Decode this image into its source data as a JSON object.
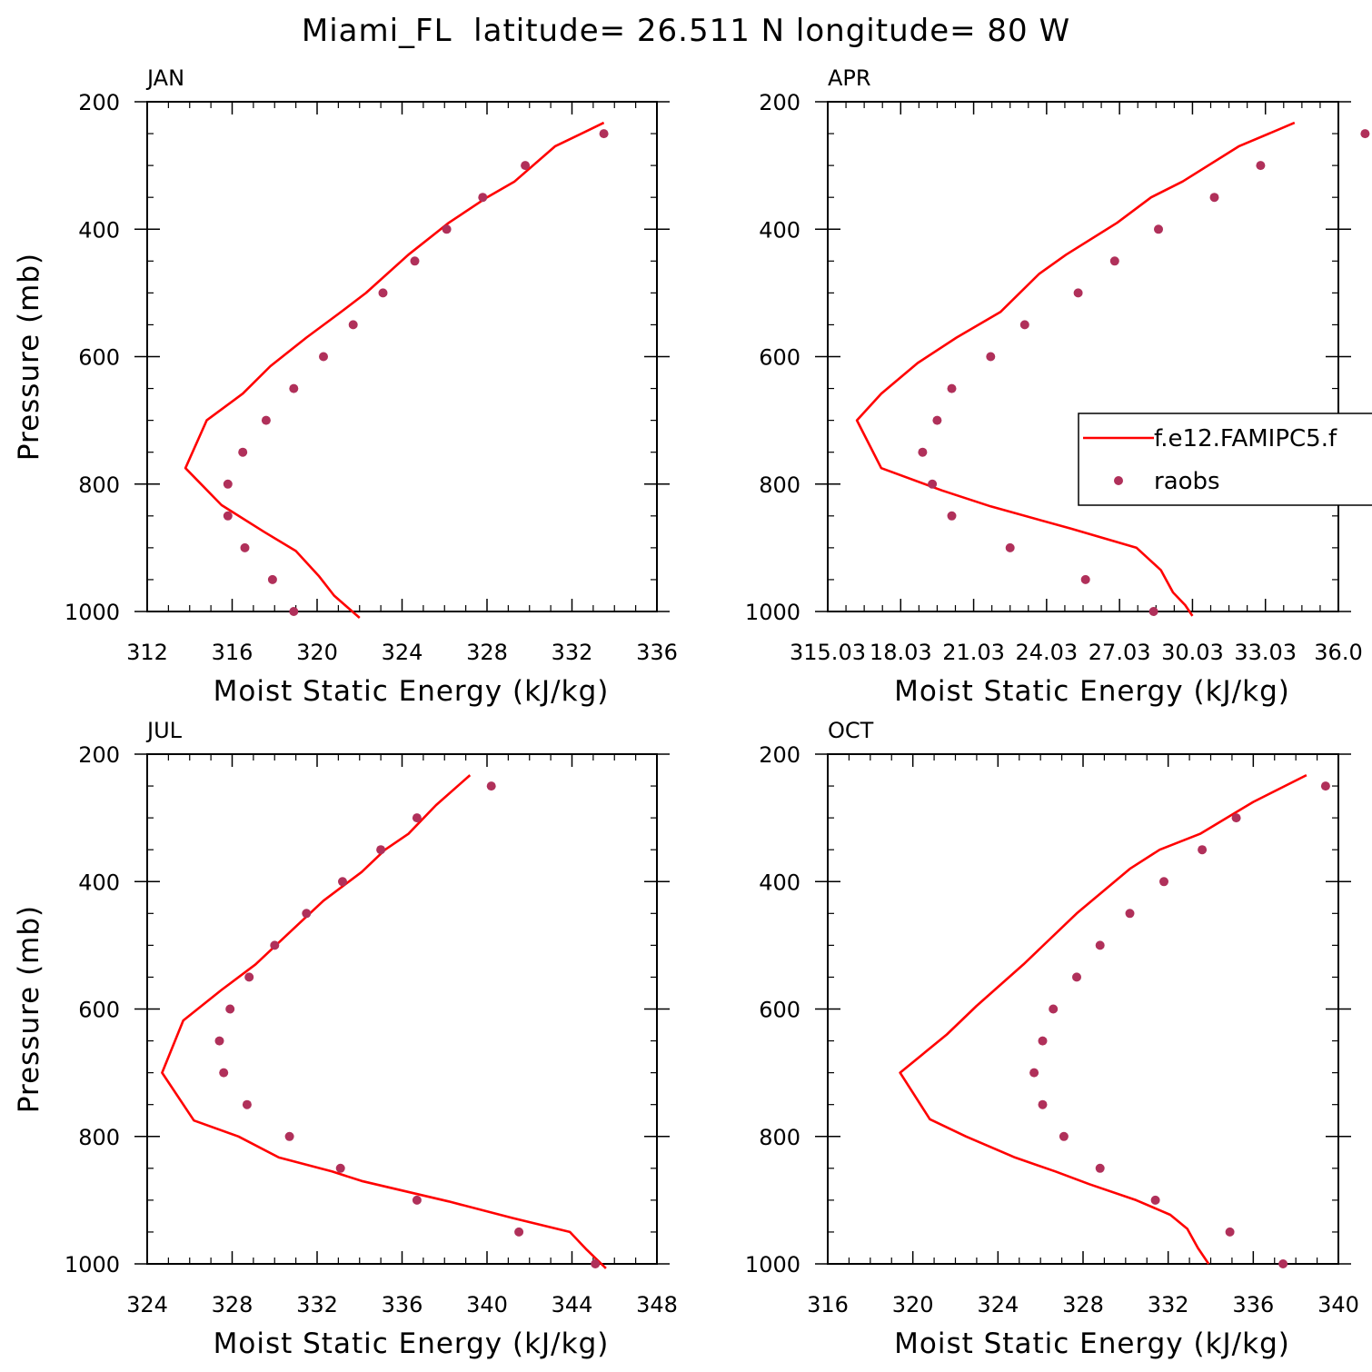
{
  "figure": {
    "title": "Miami_FL  latitude= 26.511 N longitude= 80 W"
  },
  "legend": {
    "entries": [
      {
        "label": "f.e12.FAMIPC5.f",
        "style": "line",
        "color": "#ff0000"
      },
      {
        "label": "raobs",
        "style": "dot",
        "color": "#b0305a"
      }
    ]
  },
  "colors": {
    "model_line": "#ff0000",
    "obs_dots": "#b0305a",
    "axes": "#000000"
  },
  "chart_data": [
    {
      "type": "line",
      "panel": "JAN",
      "xlabel": "Moist Static Energy (kJ/kg)",
      "ylabel": "Pressure (mb)",
      "xlim": [
        312,
        336
      ],
      "ylim": [
        200,
        1000
      ],
      "y_inverted": true,
      "xticks": [
        312,
        316,
        320,
        324,
        328,
        332,
        336
      ],
      "xtick_labels": [
        "312",
        "316",
        "320",
        "324",
        "328",
        "332",
        "336"
      ],
      "yticks": [
        200,
        400,
        600,
        800,
        1000
      ],
      "legend": false,
      "series": [
        {
          "name": "f.e12.FAMIPC5.f",
          "style": "line",
          "points": [
            [
              333.5,
              233
            ],
            [
              331.2,
              270
            ],
            [
              329.3,
              325
            ],
            [
              328,
              350
            ],
            [
              326.2,
              390
            ],
            [
              324.3,
              440
            ],
            [
              322.3,
              500
            ],
            [
              321,
              533
            ],
            [
              319.5,
              570
            ],
            [
              317.8,
              615
            ],
            [
              316.5,
              658
            ],
            [
              314.8,
              700
            ],
            [
              313.8,
              775
            ],
            [
              315.5,
              833
            ],
            [
              317.5,
              875
            ],
            [
              319,
              905
            ],
            [
              320.1,
              945
            ],
            [
              320.8,
              975
            ],
            [
              322,
              1010
            ]
          ]
        },
        {
          "name": "raobs",
          "style": "dot",
          "points": [
            [
              333.5,
              250
            ],
            [
              329.8,
              300
            ],
            [
              327.8,
              350
            ],
            [
              326.1,
              400
            ],
            [
              324.6,
              450
            ],
            [
              323.1,
              500
            ],
            [
              321.7,
              550
            ],
            [
              320.3,
              600
            ],
            [
              318.9,
              650
            ],
            [
              317.6,
              700
            ],
            [
              316.5,
              750
            ],
            [
              315.8,
              800
            ],
            [
              315.8,
              850
            ],
            [
              316.6,
              900
            ],
            [
              317.9,
              950
            ],
            [
              318.9,
              1000
            ]
          ]
        }
      ]
    },
    {
      "type": "line",
      "panel": "APR",
      "xlabel": "Moist Static Energy (kJ/kg)",
      "ylabel": "",
      "xlim": [
        315,
        336
      ],
      "ylim": [
        200,
        1000
      ],
      "y_inverted": true,
      "xticks": [
        315,
        318,
        321,
        324,
        327,
        330,
        333,
        336
      ],
      "xtick_labels": [
        "315.03",
        "18.03",
        "21.03",
        "24.03",
        "27.03",
        "30.03",
        "33.03",
        "36.0"
      ],
      "yticks": [
        200,
        400,
        600,
        800,
        1000
      ],
      "legend": true,
      "series": [
        {
          "name": "f.e12.FAMIPC5.f",
          "style": "line",
          "points": [
            [
              334.2,
              233
            ],
            [
              331.9,
              270
            ],
            [
              329.6,
              325
            ],
            [
              328.3,
              350
            ],
            [
              326.9,
              390
            ],
            [
              324.8,
              440
            ],
            [
              323.7,
              470
            ],
            [
              322.1,
              530
            ],
            [
              320.3,
              570
            ],
            [
              318.7,
              610
            ],
            [
              317.2,
              658
            ],
            [
              316.2,
              700
            ],
            [
              317.2,
              775
            ],
            [
              319.7,
              810
            ],
            [
              321.7,
              835
            ],
            [
              325,
              870
            ],
            [
              327.7,
              900
            ],
            [
              328.7,
              935
            ],
            [
              329.2,
              970
            ],
            [
              329.7,
              990
            ],
            [
              330,
              1007
            ]
          ]
        },
        {
          "name": "raobs",
          "style": "dot",
          "points": [
            [
              337.1,
              250
            ],
            [
              332.8,
              300
            ],
            [
              330.9,
              350
            ],
            [
              328.6,
              400
            ],
            [
              326.8,
              450
            ],
            [
              325.3,
              500
            ],
            [
              323.1,
              550
            ],
            [
              321.7,
              600
            ],
            [
              320.1,
              650
            ],
            [
              319.5,
              700
            ],
            [
              318.9,
              750
            ],
            [
              319.3,
              800
            ],
            [
              320.1,
              850
            ],
            [
              322.5,
              900
            ],
            [
              325.6,
              950
            ],
            [
              328.4,
              1000
            ]
          ]
        }
      ]
    },
    {
      "type": "line",
      "panel": "JUL",
      "xlabel": "Moist Static Energy (kJ/kg)",
      "ylabel": "Pressure (mb)",
      "xlim": [
        324,
        348
      ],
      "ylim": [
        200,
        1000
      ],
      "y_inverted": true,
      "xticks": [
        324,
        328,
        332,
        336,
        340,
        344,
        348
      ],
      "xtick_labels": [
        "324",
        "328",
        "332",
        "336",
        "340",
        "344",
        "348"
      ],
      "yticks": [
        200,
        400,
        600,
        800,
        1000
      ],
      "legend": false,
      "series": [
        {
          "name": "f.e12.FAMIPC5.f",
          "style": "line",
          "points": [
            [
              339.2,
              233
            ],
            [
              337.6,
              280
            ],
            [
              336.3,
              325
            ],
            [
              335.2,
              350
            ],
            [
              334.1,
              385
            ],
            [
              332.3,
              430
            ],
            [
              330.7,
              480
            ],
            [
              329.1,
              530
            ],
            [
              327.5,
              570
            ],
            [
              325.7,
              618
            ],
            [
              324.7,
              700
            ],
            [
              326.2,
              775
            ],
            [
              328.3,
              800
            ],
            [
              330.2,
              833
            ],
            [
              332.7,
              855
            ],
            [
              334.1,
              870
            ],
            [
              338.2,
              902
            ],
            [
              341.2,
              928
            ],
            [
              343.9,
              950
            ],
            [
              344.7,
              978
            ],
            [
              345.6,
              1007
            ]
          ]
        },
        {
          "name": "raobs",
          "style": "dot",
          "points": [
            [
              340.2,
              250
            ],
            [
              336.7,
              300
            ],
            [
              335,
              350
            ],
            [
              333.2,
              400
            ],
            [
              331.5,
              450
            ],
            [
              330,
              500
            ],
            [
              328.8,
              550
            ],
            [
              327.9,
              600
            ],
            [
              327.4,
              650
            ],
            [
              327.6,
              700
            ],
            [
              328.7,
              750
            ],
            [
              330.7,
              800
            ],
            [
              333.1,
              850
            ],
            [
              336.7,
              900
            ],
            [
              341.5,
              950
            ],
            [
              345.1,
              1000
            ]
          ]
        }
      ]
    },
    {
      "type": "line",
      "panel": "OCT",
      "xlabel": "Moist Static Energy (kJ/kg)",
      "ylabel": "",
      "xlim": [
        316,
        340
      ],
      "ylim": [
        200,
        1000
      ],
      "y_inverted": true,
      "xticks": [
        316,
        320,
        324,
        328,
        332,
        336,
        340
      ],
      "xtick_labels": [
        "316",
        "320",
        "324",
        "328",
        "332",
        "336",
        "340"
      ],
      "yticks": [
        200,
        400,
        600,
        800,
        1000
      ],
      "legend": false,
      "series": [
        {
          "name": "f.e12.FAMIPC5.f",
          "style": "line",
          "points": [
            [
              338.5,
              233
            ],
            [
              336,
              275
            ],
            [
              333.5,
              325
            ],
            [
              331.6,
              350
            ],
            [
              330.2,
              380
            ],
            [
              327.7,
              450
            ],
            [
              325.2,
              530
            ],
            [
              323,
              595
            ],
            [
              321.6,
              640
            ],
            [
              319.4,
              700
            ],
            [
              320.8,
              773
            ],
            [
              322.5,
              800
            ],
            [
              324.8,
              833
            ],
            [
              326.7,
              855
            ],
            [
              328.3,
              875
            ],
            [
              330.5,
              900
            ],
            [
              332.1,
              923
            ],
            [
              332.9,
              945
            ],
            [
              333.4,
              975
            ],
            [
              333.9,
              1000
            ]
          ]
        },
        {
          "name": "raobs",
          "style": "dot",
          "points": [
            [
              339.4,
              250
            ],
            [
              335.2,
              300
            ],
            [
              333.6,
              350
            ],
            [
              331.8,
              400
            ],
            [
              330.2,
              450
            ],
            [
              328.8,
              500
            ],
            [
              327.7,
              550
            ],
            [
              326.6,
              600
            ],
            [
              326.1,
              650
            ],
            [
              325.7,
              700
            ],
            [
              326.1,
              750
            ],
            [
              327.1,
              800
            ],
            [
              328.8,
              850
            ],
            [
              331.4,
              900
            ],
            [
              334.9,
              950
            ],
            [
              337.4,
              1000
            ]
          ]
        }
      ]
    }
  ]
}
